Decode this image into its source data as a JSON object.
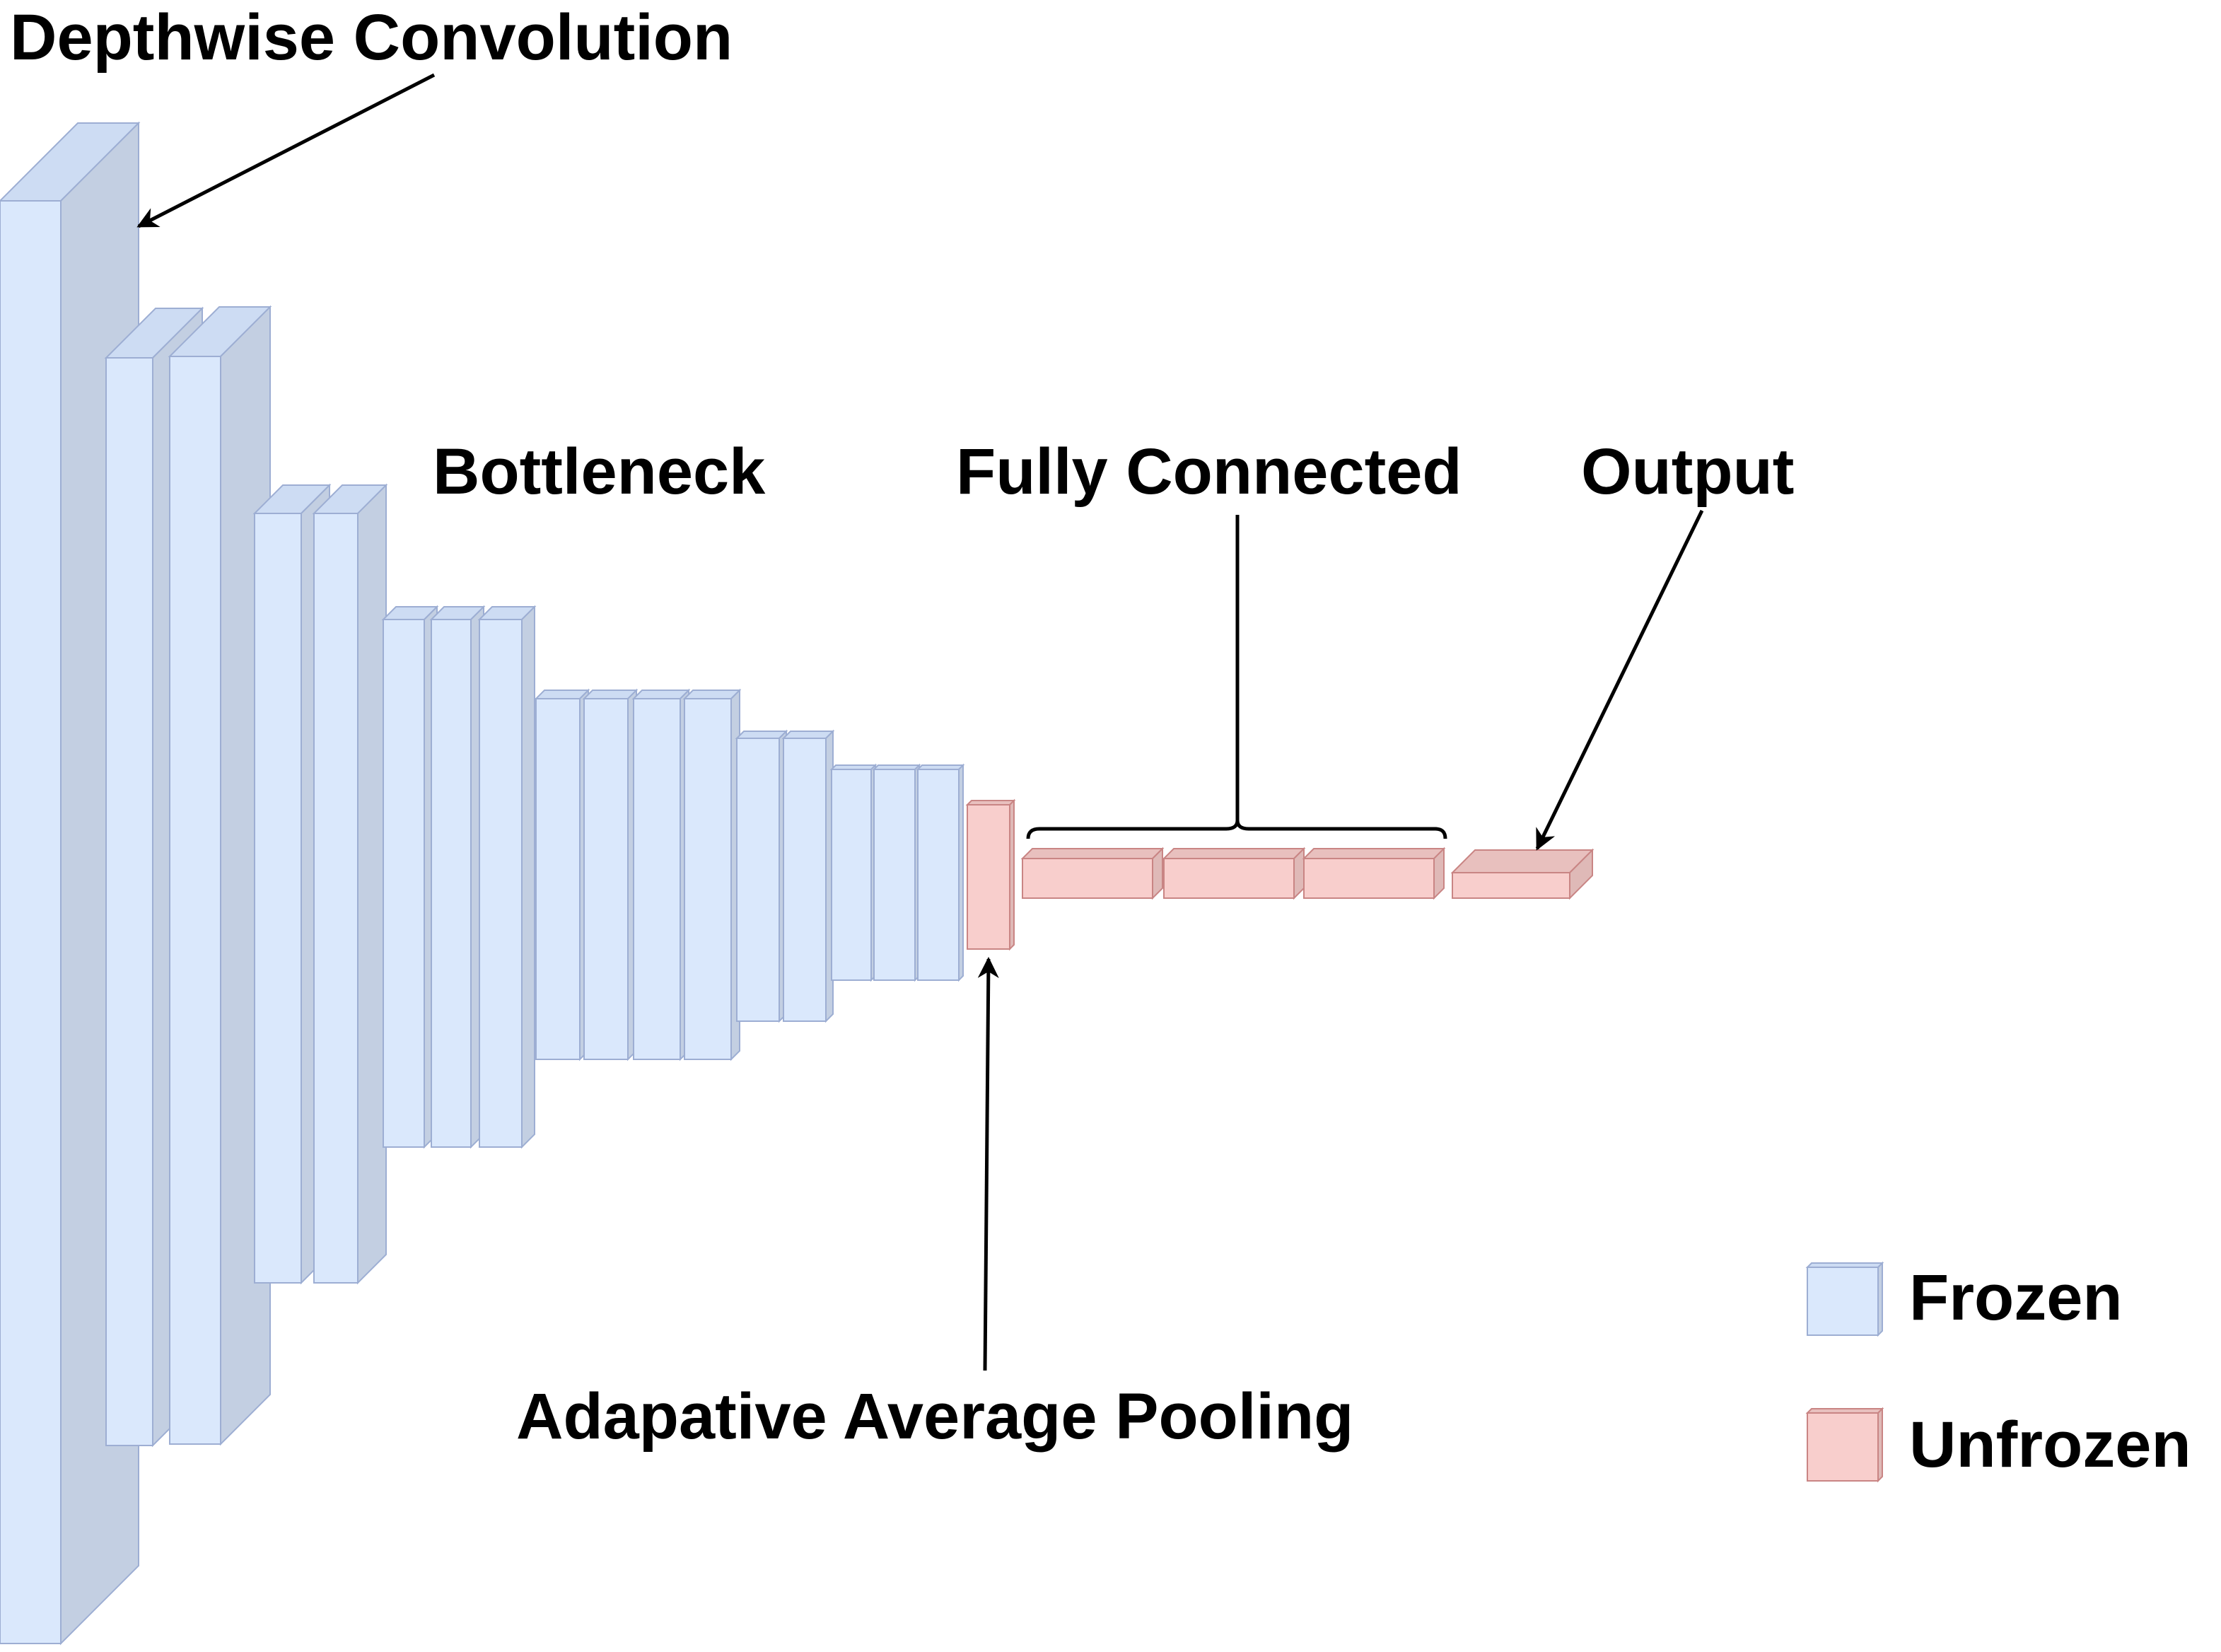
{
  "labels": {
    "depthwise_convolution": "Depthwise Convolution",
    "bottleneck": "Bottleneck",
    "fully_connected": "Fully Connected",
    "output": "Output",
    "adaptive_average_pooling": "Adapative Average Pooling"
  },
  "legend": {
    "frozen": "Frozen",
    "unfrozen": "Unfrozen"
  },
  "colors": {
    "frozen_front": "#dae8fc",
    "frozen_side": "#c3cfe2",
    "frozen_top": "#cddcf3",
    "frozen_stroke": "#9daed3",
    "unfrozen_front": "#f8cecc",
    "unfrozen_side": "#dfb9b7",
    "unfrozen_top": "#e8c0be",
    "unfrozen_stroke": "#c98584",
    "arrow": "#000000"
  },
  "icons": [
    "arrow-icon",
    "brace-icon"
  ]
}
